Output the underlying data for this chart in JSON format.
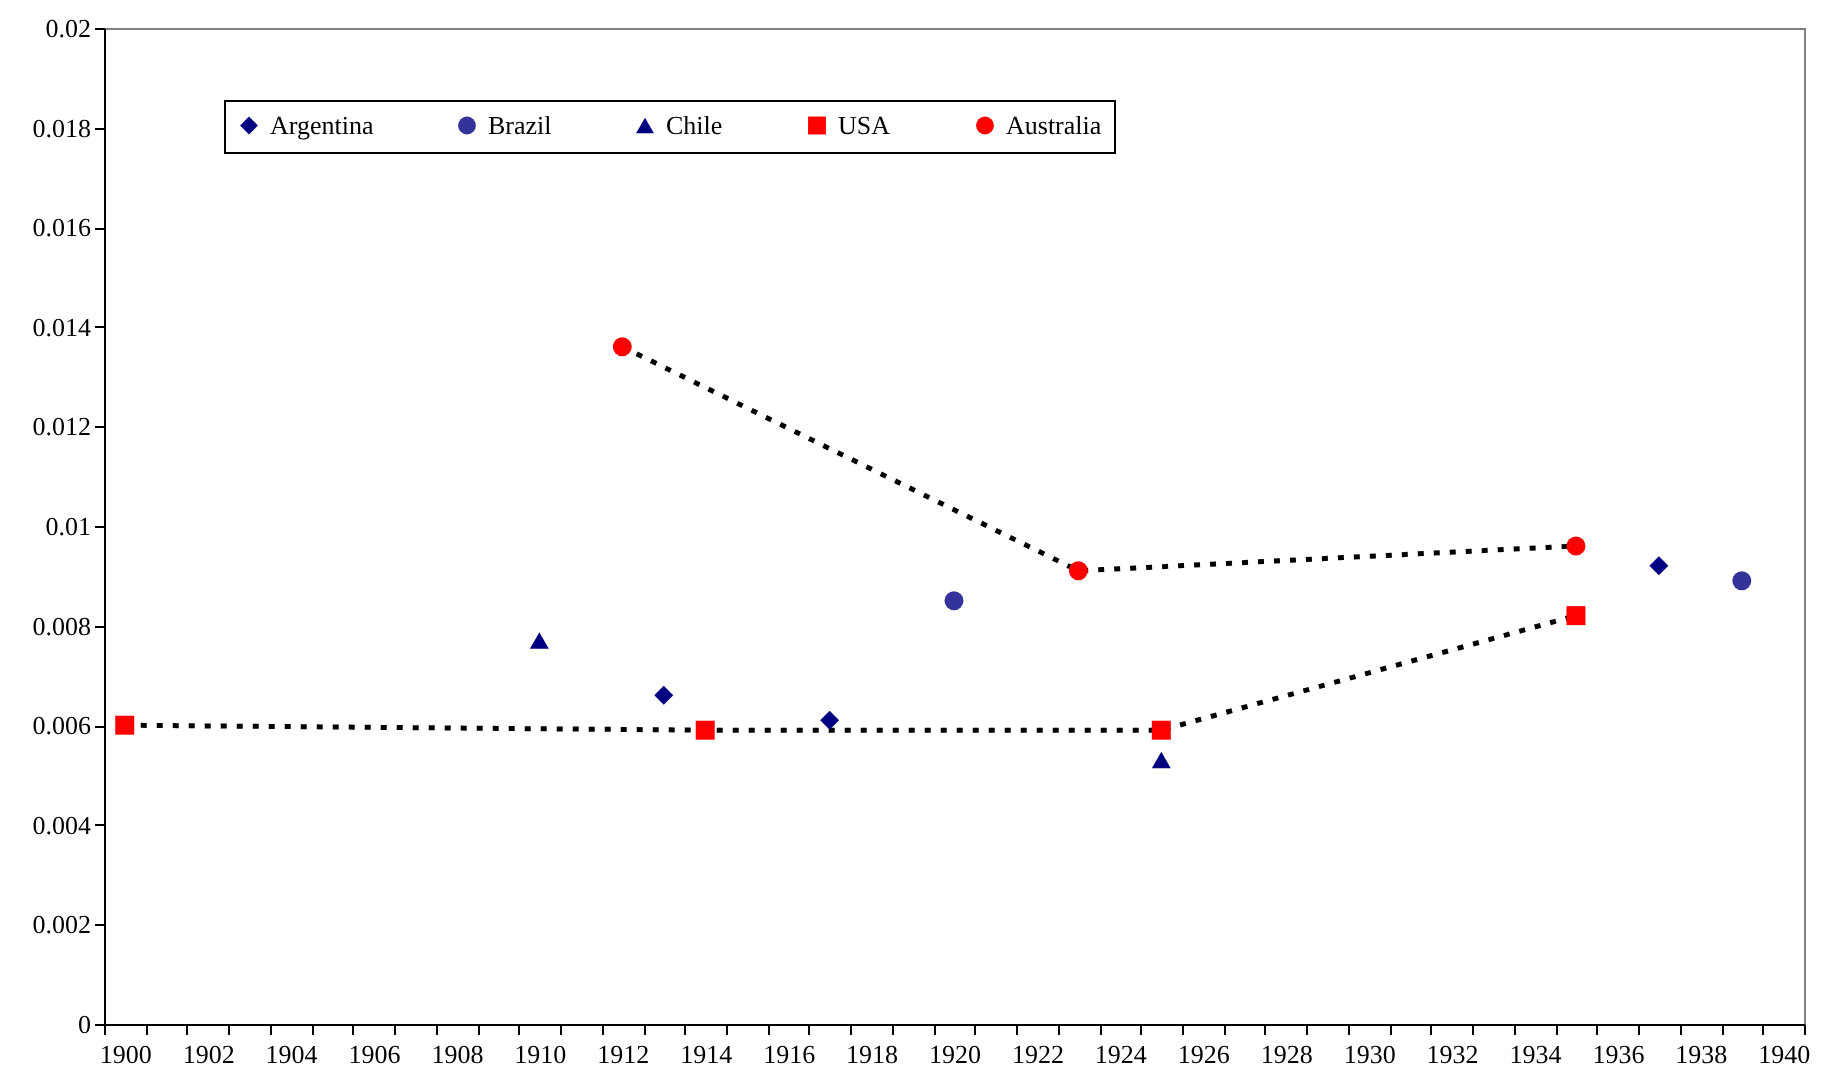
{
  "chart_data": {
    "type": "scatter",
    "categories": [
      "1900",
      null,
      "1902",
      null,
      "1904",
      null,
      "1906",
      null,
      "1908",
      null,
      "1910",
      null,
      "1912",
      null,
      "1914",
      null,
      "1916",
      null,
      "1918",
      null,
      "1920",
      null,
      "1922",
      null,
      "1924",
      null,
      "1926",
      null,
      "1928",
      null,
      "1930",
      null,
      "1932",
      null,
      "1934",
      null,
      "1936",
      null,
      "1938",
      null,
      "1940"
    ],
    "series": [
      {
        "type": "line",
        "color": "#000000",
        "line_style": "dotted",
        "marker": "none",
        "values": [
          0.006,
          null,
          null,
          null,
          null,
          null,
          null,
          null,
          null,
          null,
          null,
          null,
          null,
          null,
          0.0059,
          null,
          null,
          null,
          null,
          null,
          null,
          null,
          null,
          null,
          null,
          0.0059,
          null,
          null,
          null,
          null,
          null,
          null,
          null,
          null,
          null,
          0.0082,
          null,
          null,
          null,
          null,
          null
        ]
      },
      {
        "type": "line",
        "color": "#000000",
        "line_style": "dotted",
        "marker": "none",
        "values": [
          null,
          null,
          null,
          null,
          null,
          null,
          null,
          null,
          null,
          null,
          null,
          null,
          0.0136,
          null,
          null,
          null,
          null,
          null,
          null,
          null,
          null,
          null,
          null,
          0.0091,
          null,
          null,
          null,
          null,
          null,
          null,
          null,
          null,
          null,
          null,
          null,
          0.0096,
          null,
          null,
          null,
          null,
          null
        ]
      },
      {
        "name": "Argentina",
        "color": "#000080",
        "marker": "diamond",
        "values": [
          null,
          null,
          null,
          null,
          null,
          null,
          null,
          null,
          null,
          null,
          null,
          null,
          null,
          0.0066,
          null,
          null,
          null,
          0.0061,
          null,
          null,
          null,
          null,
          null,
          null,
          null,
          null,
          null,
          null,
          null,
          null,
          null,
          null,
          null,
          null,
          null,
          null,
          null,
          0.0092,
          null,
          null,
          null
        ]
      },
      {
        "name": "Brazil",
        "color": "#333399",
        "marker": "circle",
        "values": [
          null,
          null,
          null,
          null,
          null,
          null,
          null,
          null,
          null,
          null,
          null,
          null,
          null,
          null,
          null,
          null,
          null,
          null,
          null,
          null,
          0.0085,
          null,
          null,
          null,
          null,
          null,
          null,
          null,
          null,
          null,
          null,
          null,
          null,
          null,
          null,
          null,
          null,
          null,
          null,
          0.0089,
          null
        ]
      },
      {
        "name": "Chile",
        "color": "#000080",
        "marker": "triangle",
        "values": [
          null,
          null,
          null,
          null,
          null,
          null,
          null,
          null,
          null,
          null,
          0.0077,
          null,
          null,
          null,
          null,
          null,
          null,
          null,
          null,
          null,
          null,
          null,
          null,
          null,
          null,
          0.0053,
          null,
          null,
          null,
          null,
          null,
          null,
          null,
          null,
          null,
          null,
          null,
          null,
          null,
          null,
          null
        ]
      },
      {
        "name": "USA",
        "color": "#ff0000",
        "marker": "square",
        "values": [
          0.006,
          null,
          null,
          null,
          null,
          null,
          null,
          null,
          null,
          null,
          null,
          null,
          null,
          null,
          0.0059,
          null,
          null,
          null,
          null,
          null,
          null,
          null,
          null,
          null,
          null,
          0.0059,
          null,
          null,
          null,
          null,
          null,
          null,
          null,
          null,
          null,
          0.0082,
          null,
          null,
          null,
          null,
          null
        ]
      },
      {
        "name": "Australia",
        "color": "#ff0000",
        "marker": "circle",
        "values": [
          null,
          null,
          null,
          null,
          null,
          null,
          null,
          null,
          null,
          null,
          null,
          null,
          0.0136,
          null,
          null,
          null,
          null,
          null,
          null,
          null,
          null,
          null,
          null,
          0.0091,
          null,
          null,
          null,
          null,
          null,
          null,
          null,
          null,
          null,
          null,
          null,
          0.0096,
          null,
          null,
          null,
          null,
          null
        ]
      }
    ],
    "ylim": [
      0,
      0.02
    ],
    "yticks": [
      0,
      0.002,
      0.004,
      0.006,
      0.008,
      0.01,
      0.012,
      0.014,
      0.016,
      0.018,
      0.02
    ],
    "legend": "top"
  }
}
